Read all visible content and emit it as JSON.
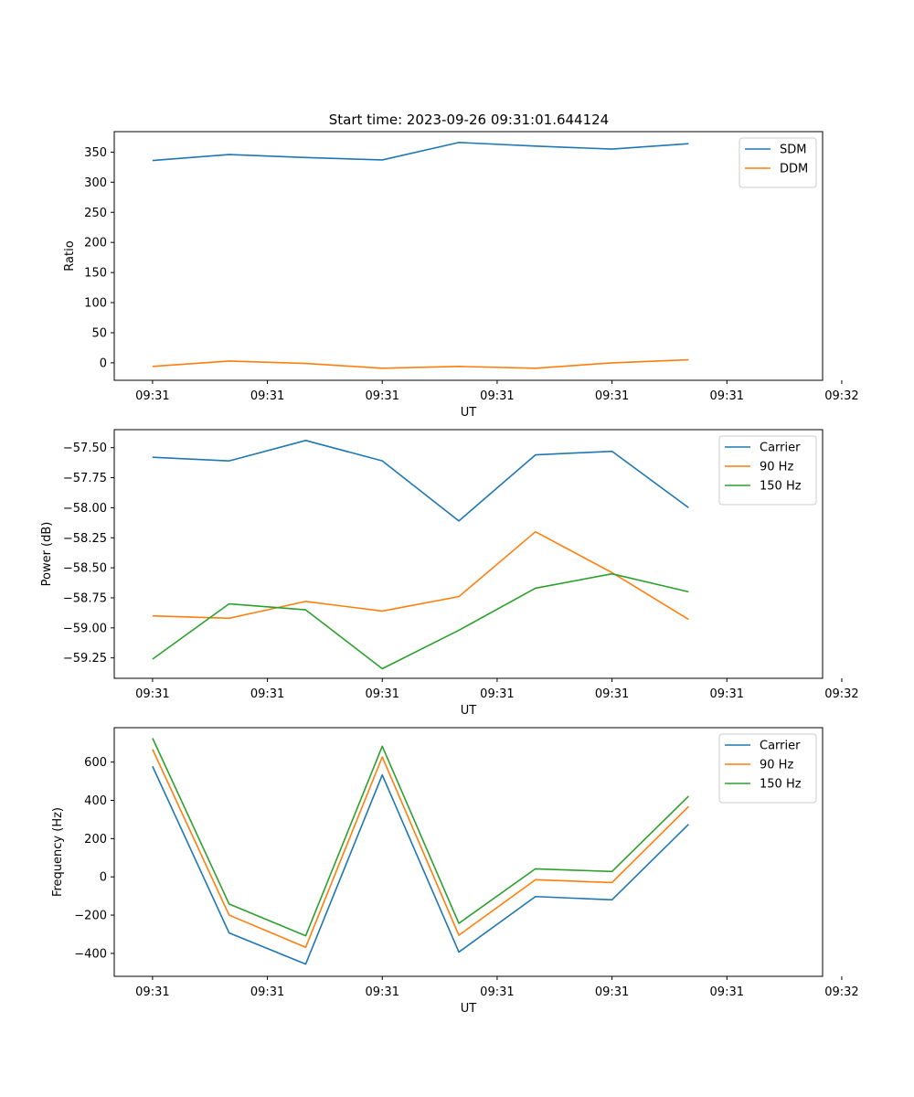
{
  "title": "Start time: 2023-09-26 09:31:01.644124",
  "chart_data": [
    {
      "type": "line",
      "title": "Start time: 2023-09-26 09:31:01.644124",
      "xlabel": "UT",
      "ylabel": "Ratio",
      "x_tick_labels": [
        "09:31",
        "09:31",
        "09:31",
        "09:31",
        "09:31",
        "09:31",
        "09:32"
      ],
      "y_ticks": [
        0,
        50,
        100,
        150,
        200,
        250,
        300,
        350
      ],
      "y_tick_labels": [
        "0",
        "50",
        "100",
        "150",
        "200",
        "250",
        "300",
        "350"
      ],
      "xlim": [
        -0.5,
        8.75
      ],
      "ylim": [
        -29,
        384
      ],
      "x": [
        0,
        1,
        2,
        3,
        4,
        5,
        6,
        7
      ],
      "legend_position": "top-right",
      "series": [
        {
          "name": "SDM",
          "color": "#1f77b4",
          "values": [
            336,
            346,
            341,
            337,
            366,
            360,
            355,
            364
          ]
        },
        {
          "name": "DDM",
          "color": "#ff7f0e",
          "values": [
            -6,
            3,
            -1,
            -9,
            -6,
            -9,
            0,
            5
          ]
        }
      ]
    },
    {
      "type": "line",
      "title": "",
      "xlabel": "UT",
      "ylabel": "Power (dB)",
      "x_tick_labels": [
        "09:31",
        "09:31",
        "09:31",
        "09:31",
        "09:31",
        "09:31",
        "09:32"
      ],
      "y_ticks": [
        -59.25,
        -59.0,
        -58.75,
        -58.5,
        -58.25,
        -58.0,
        -57.75,
        -57.5
      ],
      "y_tick_labels": [
        "−59.25",
        "−59.00",
        "−58.75",
        "−58.50",
        "−58.25",
        "−58.00",
        "−57.75",
        "−57.50"
      ],
      "xlim": [
        -0.5,
        8.75
      ],
      "ylim": [
        -59.42,
        -57.35
      ],
      "x": [
        0,
        1,
        2,
        3,
        4,
        5,
        6,
        7
      ],
      "legend_position": "top-right",
      "series": [
        {
          "name": "Carrier",
          "color": "#1f77b4",
          "values": [
            -57.58,
            -57.61,
            -57.44,
            -57.61,
            -58.11,
            -57.56,
            -57.53,
            -58.0
          ]
        },
        {
          "name": "90 Hz",
          "color": "#ff7f0e",
          "values": [
            -58.9,
            -58.92,
            -58.78,
            -58.86,
            -58.74,
            -58.2,
            -58.54,
            -58.93
          ]
        },
        {
          "name": "150 Hz",
          "color": "#2ca02c",
          "values": [
            -59.26,
            -58.8,
            -58.85,
            -59.34,
            -59.02,
            -58.67,
            -58.55,
            -58.7
          ]
        }
      ]
    },
    {
      "type": "line",
      "title": "",
      "xlabel": "UT",
      "ylabel": "Frequency (Hz)",
      "x_tick_labels": [
        "09:31",
        "09:31",
        "09:31",
        "09:31",
        "09:31",
        "09:31",
        "09:32"
      ],
      "y_ticks": [
        -400,
        -200,
        0,
        200,
        400,
        600
      ],
      "y_tick_labels": [
        "−400",
        "−200",
        "0",
        "200",
        "400",
        "600"
      ],
      "xlim": [
        -0.5,
        8.75
      ],
      "ylim": [
        -520,
        780
      ],
      "x": [
        0,
        1,
        2,
        3,
        4,
        5,
        6,
        7
      ],
      "legend_position": "top-right",
      "series": [
        {
          "name": "Carrier",
          "color": "#1f77b4",
          "values": [
            578,
            -293,
            -456,
            533,
            -393,
            -103,
            -120,
            275
          ]
        },
        {
          "name": "90 Hz",
          "color": "#ff7f0e",
          "values": [
            667,
            -200,
            -368,
            627,
            -305,
            -15,
            -30,
            368
          ]
        },
        {
          "name": "150 Hz",
          "color": "#2ca02c",
          "values": [
            725,
            -142,
            -308,
            683,
            -243,
            42,
            28,
            422
          ]
        }
      ]
    }
  ]
}
